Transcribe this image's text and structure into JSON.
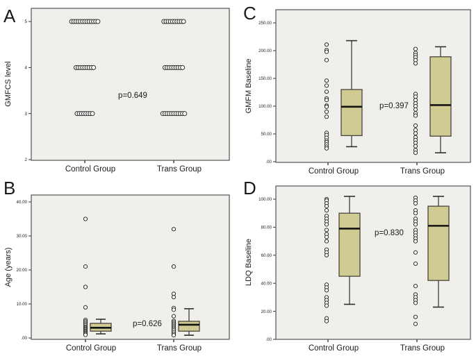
{
  "figure_title": "",
  "colors": {
    "page_bg": "#ffffff",
    "plot_bg": "#f0efec",
    "frame": "#555555",
    "axis": "#2e2e2e",
    "box_fill": "#d0cb92",
    "box_border": "#45453b",
    "median": "#121212",
    "point_stroke": "#2e2e2e",
    "point_fill": "#faf9f6",
    "text": "#1a1a1a"
  },
  "chart_data": [
    {
      "panel": "A",
      "type": "scatter",
      "title": "",
      "xlabel": "",
      "ylabel": "GMFCS level",
      "p_label": "p=0.649",
      "categories": [
        "Control Group",
        "Trans Group"
      ],
      "yticks": [
        {
          "label": "5",
          "value": 5
        },
        {
          "label": "4",
          "value": 4
        },
        {
          "label": "3",
          "value": 3
        },
        {
          "label": "2",
          "value": 2
        }
      ],
      "ylim": [
        2,
        5.3
      ],
      "series": [
        {
          "name": "Control Group",
          "level_counts": [
            {
              "level": 5,
              "count": 13
            },
            {
              "level": 4,
              "count": 9
            },
            {
              "level": 3,
              "count": 8
            }
          ]
        },
        {
          "name": "Trans Group",
          "level_counts": [
            {
              "level": 5,
              "count": 10
            },
            {
              "level": 4,
              "count": 9
            },
            {
              "level": 3,
              "count": 11
            }
          ]
        }
      ]
    },
    {
      "panel": "B",
      "type": "boxplot",
      "title": "",
      "xlabel": "",
      "ylabel": "Age (years)",
      "p_label": "p=0.626",
      "categories": [
        "Control Group",
        "Trans Group"
      ],
      "yticks": [
        {
          "label": "40.00",
          "value": 40
        },
        {
          "label": "30.00",
          "value": 30
        },
        {
          "label": "20.00",
          "value": 20
        },
        {
          "label": "10.00",
          "value": 10
        },
        {
          "label": ".00",
          "value": 0
        }
      ],
      "ylim": [
        0,
        42.5
      ],
      "groups": [
        {
          "name": "Control Group",
          "box": {
            "q1": 2.0,
            "median": 3.0,
            "q3": 4.3,
            "whisker_low": 1.2,
            "whisker_high": 5.5
          },
          "points": [
            35,
            21,
            15,
            9,
            5.3,
            4.9,
            4.5,
            4.1,
            3.7,
            3.3,
            3.0,
            2.7,
            2.4,
            2.1,
            1.8,
            1.5,
            1.2,
            0.9
          ]
        },
        {
          "name": "Trans Group",
          "box": {
            "q1": 2.0,
            "median": 3.9,
            "q3": 4.9,
            "whisker_low": 0.8,
            "whisker_high": 8.6
          },
          "points": [
            32,
            21,
            13,
            12,
            8.8,
            8.3,
            6.4,
            5.0,
            4.6,
            4.2,
            3.8,
            3.4,
            3.0,
            2.6,
            2.2,
            1.7,
            1.2,
            0.8
          ]
        }
      ]
    },
    {
      "panel": "C",
      "type": "boxplot",
      "title": "",
      "xlabel": "",
      "ylabel": "GMFM Baseline",
      "p_label": "p=0.397",
      "categories": [
        "Control Group",
        "Trans Group"
      ],
      "yticks": [
        {
          "label": "250.00",
          "value": 250
        },
        {
          "label": "200.00",
          "value": 200
        },
        {
          "label": "150.00",
          "value": 150
        },
        {
          "label": "100.00",
          "value": 100
        },
        {
          "label": "50.00",
          "value": 50
        },
        {
          "label": ".00",
          "value": 0
        }
      ],
      "ylim": [
        0,
        274
      ],
      "groups": [
        {
          "name": "Control Group",
          "box": {
            "q1": 47,
            "median": 99,
            "q3": 130,
            "whisker_low": 27,
            "whisker_high": 218
          },
          "points": [
            211,
            201,
            198,
            183,
            146,
            137,
            126,
            114,
            111,
            101,
            99,
            90,
            81,
            52,
            48,
            43,
            38,
            35,
            31,
            27,
            24
          ]
        },
        {
          "name": "Trans Group",
          "box": {
            "q1": 46,
            "median": 102,
            "q3": 189,
            "whisker_low": 16,
            "whisker_high": 207
          },
          "points": [
            203,
            196,
            192,
            188,
            183,
            177,
            122,
            117,
            111,
            105,
            100,
            94,
            87,
            83,
            65,
            57,
            51,
            44,
            39,
            34,
            28,
            21,
            16
          ]
        }
      ]
    },
    {
      "panel": "D",
      "type": "boxplot",
      "title": "",
      "xlabel": "",
      "ylabel": "LDQ Baseline",
      "p_label": "p=0.830",
      "categories": [
        "Control Group",
        "Trans Group"
      ],
      "yticks": [
        {
          "label": "100.00",
          "value": 100
        },
        {
          "label": "80.00",
          "value": 80
        },
        {
          "label": "60.00",
          "value": 60
        },
        {
          "label": "40.00",
          "value": 40
        },
        {
          "label": "20.00",
          "value": 20
        },
        {
          "label": ".00",
          "value": 0
        }
      ],
      "ylim": [
        0,
        109
      ],
      "groups": [
        {
          "name": "Control Group",
          "box": {
            "q1": 45,
            "median": 79,
            "q3": 90,
            "whisker_low": 25,
            "whisker_high": 102
          },
          "points": [
            100,
            99,
            97,
            95,
            92,
            88,
            86,
            84,
            82,
            78,
            75,
            73,
            70,
            64,
            62,
            60,
            39,
            37,
            35,
            30,
            28,
            26,
            24,
            15,
            13
          ]
        },
        {
          "name": "Trans Group",
          "box": {
            "q1": 42,
            "median": 81,
            "q3": 95,
            "whisker_low": 23,
            "whisker_high": 102
          },
          "points": [
            101,
            99,
            97,
            92,
            90,
            86,
            84,
            82,
            78,
            76,
            74,
            72,
            70,
            62,
            54,
            38,
            32,
            30,
            28,
            26,
            16,
            11
          ]
        }
      ]
    }
  ]
}
